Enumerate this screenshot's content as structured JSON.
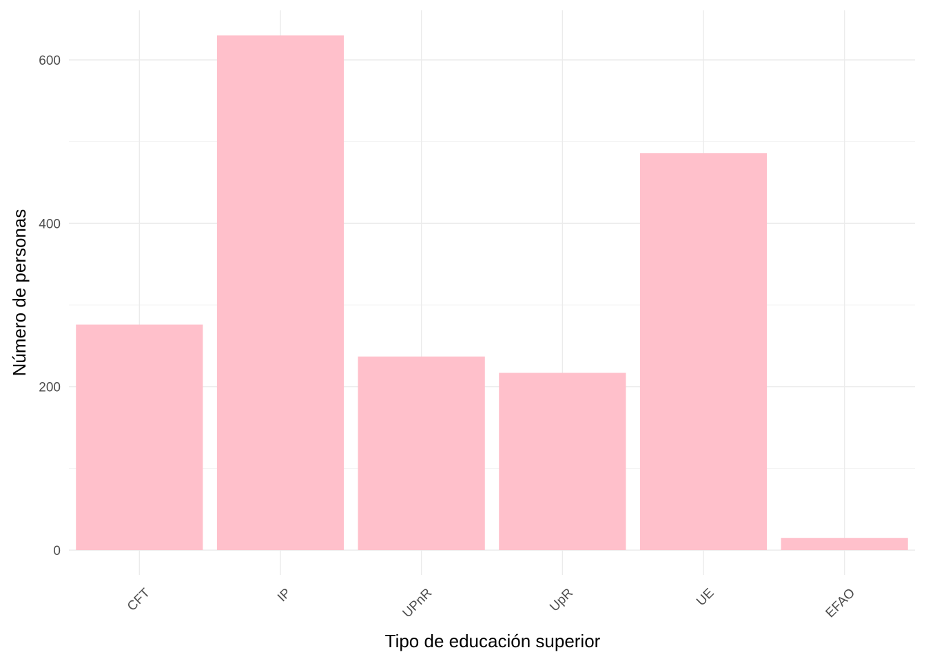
{
  "chart_data": {
    "type": "bar",
    "categories": [
      "CFT",
      "IP",
      "UPnR",
      "UpR",
      "UE",
      "EFAO"
    ],
    "values": [
      276,
      630,
      237,
      217,
      486,
      15
    ],
    "xlabel": "Tipo de educación superior",
    "ylabel": "Número de personas",
    "ylim": [
      -30,
      660
    ],
    "yticks": [
      0,
      200,
      400,
      600
    ],
    "yticks_minor": [
      100,
      300,
      500
    ],
    "grid": true,
    "bar_color": "#FFC0CB",
    "x_tick_rotation": 45
  }
}
